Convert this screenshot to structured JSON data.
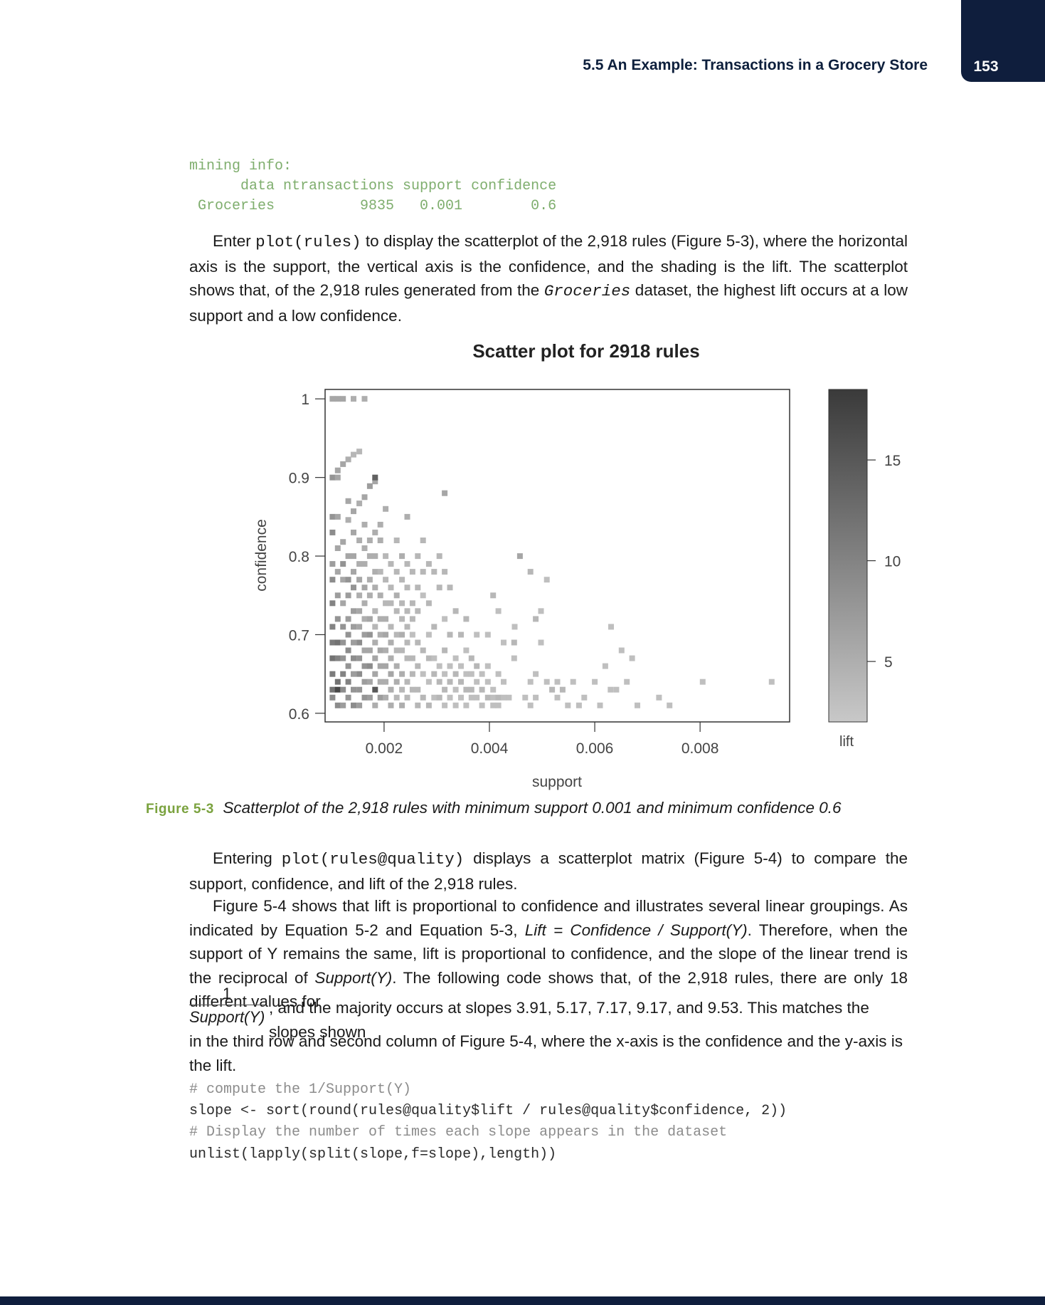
{
  "header": {
    "title": "5.5 An Example: Transactions in a Grocery Store",
    "page_number": "153"
  },
  "code_block_1": {
    "line1": "mining info:",
    "line2": "      data ntransactions support confidence",
    "line3": " Groceries          9835   0.001        0.6"
  },
  "para1": {
    "before_code": "Enter ",
    "code": "plot(rules)",
    "after_code": " to display the scatterplot of the 2,918 rules (Figure 5-3), where the horizontal axis is the support, the vertical axis is the confidence, and the shading is the lift. The scatterplot shows that, of the 2,918 rules generated from the ",
    "dataset": "Groceries",
    "end": " dataset, the highest lift occurs at a low support and a low confidence."
  },
  "chart_data": {
    "type": "scatter",
    "title": "Scatter plot for 2918 rules",
    "xlabel": "support",
    "ylabel": "confidence",
    "colorbar_label": "lift",
    "x_ticks": [
      "0.002",
      "0.004",
      "0.006",
      "0.008"
    ],
    "y_ticks": [
      "0.6",
      "0.7",
      "0.8",
      "0.9",
      "1"
    ],
    "lift_ticks": [
      "5",
      "10",
      "15"
    ],
    "xlim": [
      0.00088,
      0.0097
    ],
    "ylim": [
      0.589,
      1.012
    ],
    "lift_range": [
      2.0,
      18.5
    ],
    "grid": false,
    "points": [
      [
        0.00102,
        1.0,
        6
      ],
      [
        0.00112,
        1.0,
        6
      ],
      [
        0.00122,
        1.0,
        6
      ],
      [
        0.00142,
        1.0,
        5
      ],
      [
        0.00163,
        1.0,
        5
      ],
      [
        0.00102,
        0.9,
        8
      ],
      [
        0.00112,
        0.909,
        6
      ],
      [
        0.00122,
        0.917,
        6
      ],
      [
        0.00132,
        0.923,
        5
      ],
      [
        0.00142,
        0.929,
        4
      ],
      [
        0.00153,
        0.933,
        4
      ],
      [
        0.00122,
        0.818,
        6
      ],
      [
        0.00132,
        0.846,
        5
      ],
      [
        0.00142,
        0.857,
        6
      ],
      [
        0.00153,
        0.867,
        5
      ],
      [
        0.00163,
        0.875,
        6
      ],
      [
        0.00173,
        0.889,
        7
      ],
      [
        0.00183,
        0.895,
        6
      ],
      [
        0.00112,
        0.9,
        6
      ],
      [
        0.00183,
        0.9,
        14
      ],
      [
        0.00132,
        0.87,
        6
      ],
      [
        0.00234,
        0.8,
        5
      ],
      [
        0.00244,
        0.85,
        5
      ],
      [
        0.00203,
        0.86,
        5
      ],
      [
        0.00193,
        0.84,
        5
      ],
      [
        0.00315,
        0.88,
        6
      ],
      [
        0.00102,
        0.83,
        9
      ],
      [
        0.00102,
        0.85,
        8
      ],
      [
        0.00112,
        0.85,
        6
      ],
      [
        0.00102,
        0.79,
        7
      ],
      [
        0.00102,
        0.77,
        9
      ],
      [
        0.00102,
        0.74,
        10
      ],
      [
        0.00102,
        0.71,
        10
      ],
      [
        0.00102,
        0.69,
        11
      ],
      [
        0.00102,
        0.67,
        12
      ],
      [
        0.00102,
        0.65,
        11
      ],
      [
        0.00102,
        0.63,
        12
      ],
      [
        0.00102,
        0.62,
        9
      ],
      [
        0.00112,
        0.81,
        6
      ],
      [
        0.00112,
        0.78,
        6
      ],
      [
        0.00112,
        0.75,
        7
      ],
      [
        0.00112,
        0.72,
        8
      ],
      [
        0.00112,
        0.69,
        12
      ],
      [
        0.00112,
        0.67,
        10
      ],
      [
        0.00112,
        0.64,
        12
      ],
      [
        0.00112,
        0.63,
        17
      ],
      [
        0.00112,
        0.61,
        9
      ],
      [
        0.00122,
        0.79,
        8
      ],
      [
        0.00122,
        0.77,
        6
      ],
      [
        0.00122,
        0.74,
        6
      ],
      [
        0.00122,
        0.71,
        8
      ],
      [
        0.00122,
        0.69,
        8
      ],
      [
        0.00122,
        0.67,
        8
      ],
      [
        0.00122,
        0.65,
        10
      ],
      [
        0.00122,
        0.63,
        9
      ],
      [
        0.00122,
        0.61,
        7
      ],
      [
        0.00132,
        0.8,
        6
      ],
      [
        0.00132,
        0.77,
        8
      ],
      [
        0.00132,
        0.75,
        7
      ],
      [
        0.00132,
        0.72,
        7
      ],
      [
        0.00132,
        0.7,
        8
      ],
      [
        0.00132,
        0.68,
        9
      ],
      [
        0.00132,
        0.66,
        8
      ],
      [
        0.00132,
        0.64,
        10
      ],
      [
        0.00132,
        0.62,
        8
      ],
      [
        0.00142,
        0.83,
        6
      ],
      [
        0.00142,
        0.8,
        6
      ],
      [
        0.00142,
        0.78,
        6
      ],
      [
        0.00142,
        0.76,
        8
      ],
      [
        0.00142,
        0.73,
        7
      ],
      [
        0.00142,
        0.71,
        7
      ],
      [
        0.00142,
        0.69,
        7
      ],
      [
        0.00142,
        0.67,
        9
      ],
      [
        0.00142,
        0.65,
        7
      ],
      [
        0.00142,
        0.63,
        8
      ],
      [
        0.00142,
        0.61,
        9
      ],
      [
        0.00153,
        0.82,
        5
      ],
      [
        0.00153,
        0.79,
        5
      ],
      [
        0.00153,
        0.77,
        6
      ],
      [
        0.00153,
        0.75,
        5
      ],
      [
        0.00153,
        0.73,
        6
      ],
      [
        0.00153,
        0.71,
        6
      ],
      [
        0.00153,
        0.69,
        9
      ],
      [
        0.00153,
        0.67,
        8
      ],
      [
        0.00153,
        0.65,
        9
      ],
      [
        0.00153,
        0.63,
        8
      ],
      [
        0.00153,
        0.61,
        7
      ],
      [
        0.00163,
        0.84,
        5
      ],
      [
        0.00163,
        0.81,
        5
      ],
      [
        0.00163,
        0.79,
        5
      ],
      [
        0.00163,
        0.76,
        6
      ],
      [
        0.00163,
        0.74,
        5
      ],
      [
        0.00163,
        0.72,
        5
      ],
      [
        0.00163,
        0.7,
        7
      ],
      [
        0.00163,
        0.68,
        6
      ],
      [
        0.00163,
        0.66,
        8
      ],
      [
        0.00163,
        0.64,
        7
      ],
      [
        0.00163,
        0.62,
        8
      ],
      [
        0.00173,
        0.82,
        5
      ],
      [
        0.00173,
        0.8,
        5
      ],
      [
        0.00173,
        0.77,
        5
      ],
      [
        0.00173,
        0.75,
        5
      ],
      [
        0.00173,
        0.72,
        6
      ],
      [
        0.00173,
        0.7,
        8
      ],
      [
        0.00173,
        0.68,
        6
      ],
      [
        0.00173,
        0.66,
        9
      ],
      [
        0.00173,
        0.64,
        6
      ],
      [
        0.00173,
        0.62,
        7
      ],
      [
        0.00183,
        0.83,
        5
      ],
      [
        0.00183,
        0.8,
        5
      ],
      [
        0.00183,
        0.78,
        5
      ],
      [
        0.00183,
        0.76,
        5
      ],
      [
        0.00183,
        0.73,
        4
      ],
      [
        0.00183,
        0.71,
        4
      ],
      [
        0.00183,
        0.69,
        5
      ],
      [
        0.00183,
        0.67,
        6
      ],
      [
        0.00183,
        0.65,
        6
      ],
      [
        0.00183,
        0.63,
        15
      ],
      [
        0.00183,
        0.61,
        5
      ],
      [
        0.00193,
        0.82,
        5
      ],
      [
        0.00193,
        0.78,
        4
      ],
      [
        0.00193,
        0.75,
        5
      ],
      [
        0.00193,
        0.72,
        5
      ],
      [
        0.00193,
        0.7,
        5
      ],
      [
        0.00193,
        0.68,
        6
      ],
      [
        0.00193,
        0.66,
        6
      ],
      [
        0.00193,
        0.64,
        5
      ],
      [
        0.00193,
        0.62,
        7
      ],
      [
        0.00203,
        0.8,
        4
      ],
      [
        0.00203,
        0.77,
        4
      ],
      [
        0.00203,
        0.74,
        4
      ],
      [
        0.00203,
        0.72,
        5
      ],
      [
        0.00203,
        0.7,
        6
      ],
      [
        0.00203,
        0.68,
        5
      ],
      [
        0.00203,
        0.66,
        6
      ],
      [
        0.00203,
        0.64,
        5
      ],
      [
        0.00203,
        0.62,
        5
      ],
      [
        0.00213,
        0.79,
        4
      ],
      [
        0.00213,
        0.76,
        4
      ],
      [
        0.00213,
        0.74,
        4
      ],
      [
        0.00213,
        0.71,
        4
      ],
      [
        0.00213,
        0.69,
        5
      ],
      [
        0.00213,
        0.67,
        5
      ],
      [
        0.00213,
        0.65,
        6
      ],
      [
        0.00213,
        0.63,
        5
      ],
      [
        0.00213,
        0.61,
        5
      ],
      [
        0.00224,
        0.82,
        4
      ],
      [
        0.00224,
        0.78,
        4
      ],
      [
        0.00224,
        0.75,
        5
      ],
      [
        0.00224,
        0.73,
        4
      ],
      [
        0.00224,
        0.7,
        4
      ],
      [
        0.00224,
        0.68,
        4
      ],
      [
        0.00224,
        0.66,
        5
      ],
      [
        0.00224,
        0.64,
        5
      ],
      [
        0.00224,
        0.62,
        4
      ],
      [
        0.00234,
        0.77,
        4
      ],
      [
        0.00234,
        0.74,
        4
      ],
      [
        0.00234,
        0.72,
        4
      ],
      [
        0.00234,
        0.7,
        5
      ],
      [
        0.00234,
        0.68,
        4
      ],
      [
        0.00234,
        0.65,
        5
      ],
      [
        0.00234,
        0.63,
        4
      ],
      [
        0.00234,
        0.61,
        5
      ],
      [
        0.00244,
        0.79,
        4
      ],
      [
        0.00244,
        0.76,
        4
      ],
      [
        0.00244,
        0.73,
        4
      ],
      [
        0.00244,
        0.71,
        4
      ],
      [
        0.00244,
        0.69,
        4
      ],
      [
        0.00244,
        0.67,
        4
      ],
      [
        0.00244,
        0.64,
        4
      ],
      [
        0.00244,
        0.62,
        4
      ],
      [
        0.00254,
        0.78,
        4
      ],
      [
        0.00254,
        0.74,
        4
      ],
      [
        0.00254,
        0.72,
        4
      ],
      [
        0.00254,
        0.7,
        3
      ],
      [
        0.00254,
        0.67,
        4
      ],
      [
        0.00254,
        0.65,
        4
      ],
      [
        0.00254,
        0.63,
        4
      ],
      [
        0.00264,
        0.8,
        4
      ],
      [
        0.00264,
        0.76,
        4
      ],
      [
        0.00264,
        0.73,
        4
      ],
      [
        0.00264,
        0.69,
        4
      ],
      [
        0.00264,
        0.66,
        4
      ],
      [
        0.00264,
        0.63,
        4
      ],
      [
        0.00264,
        0.61,
        4
      ],
      [
        0.00274,
        0.82,
        4
      ],
      [
        0.00274,
        0.78,
        4
      ],
      [
        0.00274,
        0.75,
        3
      ],
      [
        0.00274,
        0.68,
        4
      ],
      [
        0.00274,
        0.65,
        3
      ],
      [
        0.00274,
        0.62,
        4
      ],
      [
        0.00285,
        0.79,
        4
      ],
      [
        0.00285,
        0.74,
        4
      ],
      [
        0.00285,
        0.7,
        3
      ],
      [
        0.00285,
        0.67,
        4
      ],
      [
        0.00285,
        0.64,
        3
      ],
      [
        0.00285,
        0.61,
        4
      ],
      [
        0.00295,
        0.78,
        4
      ],
      [
        0.00295,
        0.71,
        4
      ],
      [
        0.00295,
        0.67,
        3
      ],
      [
        0.00295,
        0.65,
        4
      ],
      [
        0.00295,
        0.62,
        3
      ],
      [
        0.00305,
        0.8,
        4
      ],
      [
        0.00305,
        0.76,
        4
      ],
      [
        0.00305,
        0.66,
        3
      ],
      [
        0.00305,
        0.64,
        4
      ],
      [
        0.00305,
        0.62,
        4
      ],
      [
        0.00315,
        0.78,
        4
      ],
      [
        0.00315,
        0.72,
        3
      ],
      [
        0.00315,
        0.68,
        4
      ],
      [
        0.00315,
        0.65,
        3
      ],
      [
        0.00315,
        0.63,
        4
      ],
      [
        0.00315,
        0.61,
        3
      ],
      [
        0.00325,
        0.76,
        4
      ],
      [
        0.00325,
        0.7,
        4
      ],
      [
        0.00325,
        0.66,
        3
      ],
      [
        0.00325,
        0.64,
        4
      ],
      [
        0.00325,
        0.62,
        3
      ],
      [
        0.00336,
        0.73,
        4
      ],
      [
        0.00336,
        0.67,
        3
      ],
      [
        0.00336,
        0.65,
        4
      ],
      [
        0.00336,
        0.63,
        3
      ],
      [
        0.00336,
        0.61,
        3
      ],
      [
        0.00346,
        0.7,
        4
      ],
      [
        0.00346,
        0.66,
        3
      ],
      [
        0.00346,
        0.64,
        4
      ],
      [
        0.00346,
        0.62,
        3
      ],
      [
        0.00356,
        0.72,
        4
      ],
      [
        0.00356,
        0.68,
        3
      ],
      [
        0.00356,
        0.65,
        3
      ],
      [
        0.00356,
        0.63,
        4
      ],
      [
        0.00356,
        0.61,
        3
      ],
      [
        0.00366,
        0.67,
        4
      ],
      [
        0.00366,
        0.65,
        3
      ],
      [
        0.00366,
        0.63,
        4
      ],
      [
        0.00366,
        0.62,
        3
      ],
      [
        0.00376,
        0.7,
        3
      ],
      [
        0.00376,
        0.66,
        4
      ],
      [
        0.00376,
        0.64,
        3
      ],
      [
        0.00376,
        0.62,
        3
      ],
      [
        0.00386,
        0.65,
        3
      ],
      [
        0.00386,
        0.63,
        4
      ],
      [
        0.00386,
        0.61,
        3
      ],
      [
        0.00397,
        0.7,
        3
      ],
      [
        0.00397,
        0.66,
        3
      ],
      [
        0.00397,
        0.64,
        3
      ],
      [
        0.00397,
        0.62,
        4
      ],
      [
        0.00407,
        0.63,
        3
      ],
      [
        0.00407,
        0.62,
        3
      ],
      [
        0.00407,
        0.61,
        3
      ],
      [
        0.00417,
        0.65,
        3
      ],
      [
        0.00417,
        0.62,
        4
      ],
      [
        0.00417,
        0.61,
        3
      ],
      [
        0.00427,
        0.64,
        3
      ],
      [
        0.00427,
        0.62,
        3
      ],
      [
        0.00407,
        0.75,
        4
      ],
      [
        0.00417,
        0.73,
        3
      ],
      [
        0.00437,
        0.62,
        3
      ],
      [
        0.00447,
        0.69,
        4
      ],
      [
        0.00447,
        0.67,
        3
      ],
      [
        0.00468,
        0.62,
        3
      ],
      [
        0.00478,
        0.64,
        3
      ],
      [
        0.00478,
        0.61,
        3
      ],
      [
        0.00488,
        0.72,
        4
      ],
      [
        0.00488,
        0.65,
        3
      ],
      [
        0.00488,
        0.62,
        3
      ],
      [
        0.00498,
        0.73,
        3
      ],
      [
        0.00498,
        0.69,
        3
      ],
      [
        0.00519,
        0.63,
        4
      ],
      [
        0.00529,
        0.64,
        3
      ],
      [
        0.00529,
        0.62,
        3
      ],
      [
        0.00539,
        0.63,
        4
      ],
      [
        0.00549,
        0.61,
        3
      ],
      [
        0.00559,
        0.64,
        3
      ],
      [
        0.0057,
        0.61,
        3
      ],
      [
        0.0058,
        0.62,
        3
      ],
      [
        0.00509,
        0.64,
        3
      ],
      [
        0.00509,
        0.77,
        3
      ],
      [
        0.00478,
        0.78,
        4
      ],
      [
        0.00427,
        0.69,
        3
      ],
      [
        0.00458,
        0.8,
        6
      ],
      [
        0.00448,
        0.71,
        3
      ],
      [
        0.006,
        0.64,
        3
      ],
      [
        0.0061,
        0.61,
        3
      ],
      [
        0.0062,
        0.66,
        3
      ],
      [
        0.0063,
        0.63,
        3
      ],
      [
        0.00661,
        0.64,
        3
      ],
      [
        0.00681,
        0.61,
        3
      ],
      [
        0.00671,
        0.67,
        3
      ],
      [
        0.00651,
        0.68,
        3
      ],
      [
        0.00631,
        0.71,
        3
      ],
      [
        0.00641,
        0.63,
        3
      ],
      [
        0.00722,
        0.62,
        3
      ],
      [
        0.00742,
        0.61,
        3
      ],
      [
        0.00805,
        0.64,
        3
      ],
      [
        0.00936,
        0.64,
        3
      ]
    ]
  },
  "figure": {
    "label": "Figure 5-3",
    "caption": "Scatterplot of the 2,918 rules with minimum support 0.001 and minimum confidence 0.6"
  },
  "para2": {
    "before_code": "Entering ",
    "code": "plot(rules@quality)",
    "after_code": " displays a scatterplot matrix (Figure 5-4) to compare the support, confidence, and lift of the 2,918 rules."
  },
  "para3": {
    "text_a": "Figure 5-4 shows that lift is proportional to confidence and illustrates several linear groupings. As indicated by Equation 5-2 and Equation 5-3, ",
    "formula": "Lift = Confidence / Support(Y)",
    "text_b": ". Therefore, when the support of Y remains the same, lift is proportional to confidence, and the slope of the linear trend is the reciprocal of ",
    "support_y": "Support(Y)",
    "text_c": ". The following code shows that, of the 2,918 rules, there are only 18 different values for"
  },
  "fraction": {
    "numerator": "1",
    "denominator": "Support(Y)"
  },
  "para4": {
    "line1": ", and the majority occurs at slopes 3.91, 5.17, 7.17, 9.17, and 9.53. This matches the slopes shown",
    "line2": "in the third row and second column of Figure 5-4, where the x-axis is the confidence and the y-axis is the lift."
  },
  "code_block_2": {
    "line1": "# compute the 1/Support(Y)",
    "line2": "slope <- sort(round(rules@quality$lift / rules@quality$confidence, 2))",
    "line3": "# Display the number of times each slope appears in the dataset",
    "line4": "unlist(lapply(split(slope,f=slope),length))"
  }
}
